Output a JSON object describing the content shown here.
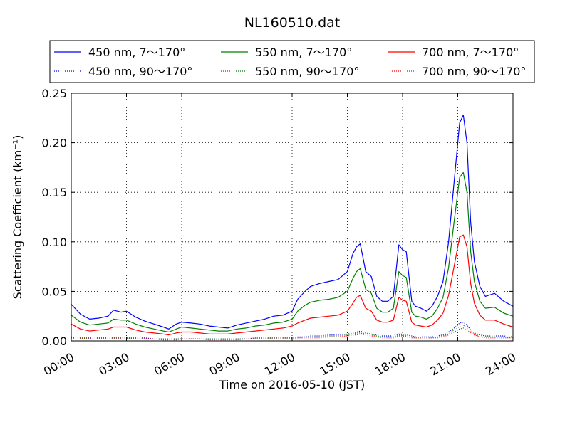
{
  "chart_data": {
    "type": "line",
    "title": "NL160510.dat",
    "xlabel": "Time on 2016-05-10 (JST)",
    "ylabel": "Scattering Coefficient (km⁻¹)",
    "xlim": [
      0,
      24
    ],
    "ylim": [
      0,
      0.25
    ],
    "xticks": [
      0,
      3,
      6,
      9,
      12,
      15,
      18,
      21,
      24
    ],
    "xtick_labels": [
      "00:00",
      "03:00",
      "06:00",
      "09:00",
      "12:00",
      "15:00",
      "18:00",
      "21:00",
      "24:00"
    ],
    "yticks": [
      0,
      0.05,
      0.1,
      0.15,
      0.2,
      0.25
    ],
    "ytick_labels": [
      "0.00",
      "0.05",
      "0.10",
      "0.15",
      "0.20",
      "0.25"
    ],
    "grid": true,
    "legend_position": "top (above plot, 3 columns)",
    "x": [
      0,
      0.5,
      1,
      1.5,
      2,
      2.3,
      2.7,
      3,
      3.5,
      4,
      4.5,
      5,
      5.3,
      5.7,
      6,
      6.5,
      7,
      7.5,
      8,
      8.5,
      9,
      9.5,
      10,
      10.5,
      11,
      11.5,
      12,
      12.3,
      12.7,
      13,
      13.5,
      14,
      14.5,
      15,
      15.3,
      15.5,
      15.7,
      16,
      16.3,
      16.6,
      16.9,
      17.2,
      17.5,
      17.8,
      18,
      18.2,
      18.5,
      18.7,
      19,
      19.3,
      19.6,
      19.9,
      20.2,
      20.5,
      20.8,
      21,
      21.1,
      21.3,
      21.5,
      21.7,
      21.9,
      22.2,
      22.5,
      23,
      23.5,
      24
    ],
    "series": [
      {
        "name": "450 nm, 7～170°",
        "color": "#0000ff",
        "style": "solid",
        "values": [
          0.037,
          0.027,
          0.022,
          0.023,
          0.025,
          0.031,
          0.029,
          0.03,
          0.024,
          0.02,
          0.017,
          0.014,
          0.012,
          0.017,
          0.019,
          0.018,
          0.017,
          0.015,
          0.014,
          0.013,
          0.016,
          0.018,
          0.02,
          0.022,
          0.025,
          0.026,
          0.03,
          0.042,
          0.05,
          0.055,
          0.058,
          0.06,
          0.062,
          0.07,
          0.088,
          0.095,
          0.098,
          0.07,
          0.065,
          0.045,
          0.04,
          0.04,
          0.045,
          0.097,
          0.092,
          0.09,
          0.04,
          0.035,
          0.033,
          0.03,
          0.035,
          0.045,
          0.06,
          0.1,
          0.16,
          0.2,
          0.22,
          0.228,
          0.2,
          0.12,
          0.08,
          0.055,
          0.045,
          0.048,
          0.04,
          0.035
        ]
      },
      {
        "name": "450 nm, 90～170°",
        "color": "#0000ff",
        "style": "dotted",
        "values": [
          0.004,
          0.003,
          0.003,
          0.003,
          0.003,
          0.003,
          0.003,
          0.003,
          0.003,
          0.003,
          0.002,
          0.002,
          0.002,
          0.002,
          0.002,
          0.002,
          0.002,
          0.002,
          0.002,
          0.002,
          0.002,
          0.002,
          0.003,
          0.003,
          0.003,
          0.003,
          0.003,
          0.004,
          0.004,
          0.005,
          0.005,
          0.006,
          0.006,
          0.007,
          0.008,
          0.009,
          0.01,
          0.008,
          0.007,
          0.006,
          0.005,
          0.005,
          0.005,
          0.007,
          0.007,
          0.006,
          0.005,
          0.004,
          0.004,
          0.004,
          0.004,
          0.005,
          0.006,
          0.009,
          0.013,
          0.016,
          0.018,
          0.019,
          0.016,
          0.011,
          0.008,
          0.006,
          0.005,
          0.005,
          0.005,
          0.004
        ]
      },
      {
        "name": "550 nm, 7～170°",
        "color": "#008000",
        "style": "solid",
        "values": [
          0.026,
          0.019,
          0.016,
          0.017,
          0.018,
          0.022,
          0.021,
          0.021,
          0.017,
          0.014,
          0.012,
          0.01,
          0.009,
          0.012,
          0.014,
          0.013,
          0.012,
          0.011,
          0.01,
          0.01,
          0.012,
          0.013,
          0.015,
          0.016,
          0.018,
          0.019,
          0.022,
          0.03,
          0.036,
          0.039,
          0.041,
          0.042,
          0.044,
          0.05,
          0.063,
          0.07,
          0.073,
          0.052,
          0.048,
          0.033,
          0.029,
          0.029,
          0.033,
          0.07,
          0.066,
          0.064,
          0.029,
          0.025,
          0.024,
          0.022,
          0.025,
          0.033,
          0.044,
          0.074,
          0.12,
          0.15,
          0.165,
          0.17,
          0.15,
          0.09,
          0.06,
          0.04,
          0.033,
          0.034,
          0.028,
          0.025
        ]
      },
      {
        "name": "550 nm, 90～170°",
        "color": "#008000",
        "style": "dotted",
        "values": [
          0.003,
          0.003,
          0.002,
          0.002,
          0.002,
          0.003,
          0.003,
          0.003,
          0.002,
          0.002,
          0.002,
          0.002,
          0.002,
          0.002,
          0.002,
          0.002,
          0.002,
          0.002,
          0.002,
          0.002,
          0.002,
          0.002,
          0.002,
          0.002,
          0.003,
          0.003,
          0.003,
          0.003,
          0.004,
          0.004,
          0.004,
          0.005,
          0.005,
          0.006,
          0.007,
          0.008,
          0.008,
          0.007,
          0.006,
          0.005,
          0.004,
          0.004,
          0.004,
          0.006,
          0.006,
          0.005,
          0.004,
          0.003,
          0.003,
          0.003,
          0.003,
          0.004,
          0.005,
          0.007,
          0.011,
          0.013,
          0.015,
          0.016,
          0.013,
          0.009,
          0.007,
          0.005,
          0.004,
          0.004,
          0.004,
          0.003
        ]
      },
      {
        "name": "700 nm, 7～170°",
        "color": "#ff0000",
        "style": "solid",
        "values": [
          0.017,
          0.012,
          0.01,
          0.011,
          0.012,
          0.014,
          0.014,
          0.014,
          0.011,
          0.009,
          0.008,
          0.007,
          0.006,
          0.008,
          0.009,
          0.009,
          0.008,
          0.007,
          0.007,
          0.007,
          0.008,
          0.009,
          0.01,
          0.011,
          0.012,
          0.013,
          0.015,
          0.018,
          0.021,
          0.023,
          0.024,
          0.025,
          0.026,
          0.03,
          0.038,
          0.044,
          0.046,
          0.033,
          0.03,
          0.021,
          0.019,
          0.019,
          0.021,
          0.044,
          0.041,
          0.04,
          0.019,
          0.016,
          0.015,
          0.014,
          0.016,
          0.021,
          0.028,
          0.046,
          0.075,
          0.095,
          0.105,
          0.107,
          0.095,
          0.058,
          0.038,
          0.026,
          0.021,
          0.021,
          0.017,
          0.014
        ]
      },
      {
        "name": "700 nm, 90～170°",
        "color": "#ff0000",
        "style": "dotted",
        "values": [
          0.003,
          0.002,
          0.002,
          0.002,
          0.002,
          0.002,
          0.002,
          0.002,
          0.002,
          0.002,
          0.002,
          0.001,
          0.001,
          0.001,
          0.002,
          0.002,
          0.002,
          0.001,
          0.001,
          0.001,
          0.001,
          0.002,
          0.002,
          0.002,
          0.002,
          0.002,
          0.002,
          0.003,
          0.003,
          0.003,
          0.003,
          0.004,
          0.004,
          0.005,
          0.006,
          0.006,
          0.007,
          0.006,
          0.005,
          0.004,
          0.003,
          0.003,
          0.003,
          0.005,
          0.005,
          0.004,
          0.003,
          0.003,
          0.003,
          0.003,
          0.003,
          0.003,
          0.004,
          0.006,
          0.009,
          0.011,
          0.012,
          0.013,
          0.011,
          0.008,
          0.006,
          0.004,
          0.003,
          0.003,
          0.003,
          0.003
        ]
      }
    ]
  }
}
